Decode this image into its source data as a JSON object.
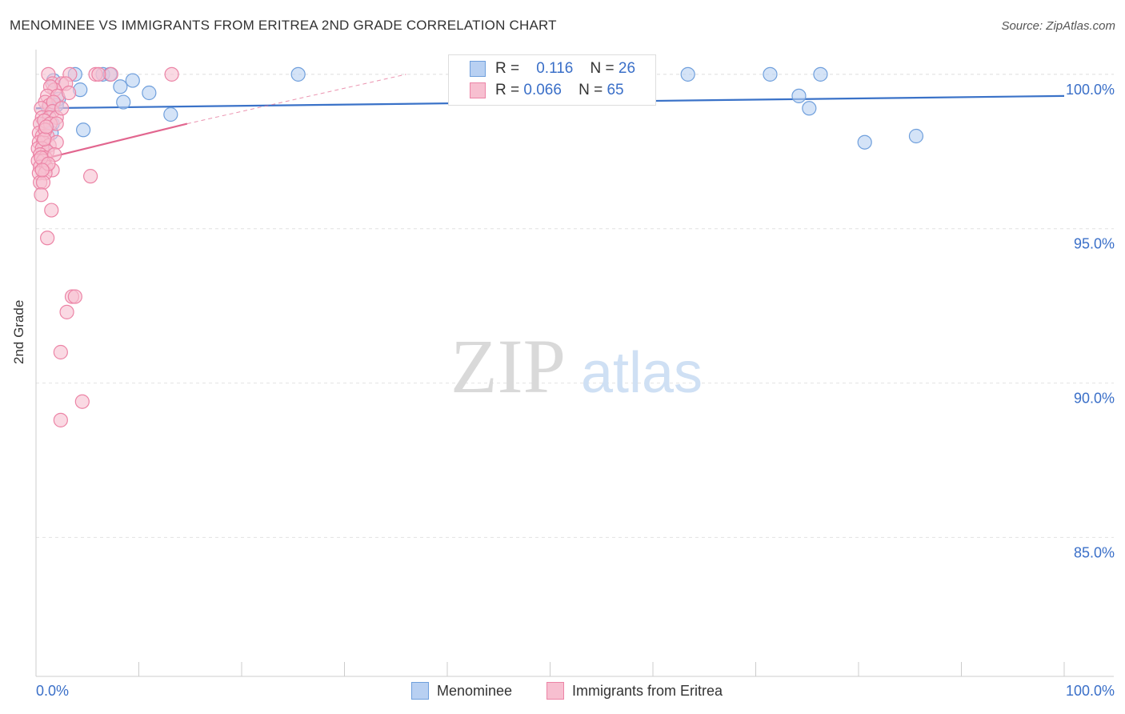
{
  "title": "MENOMINEE VS IMMIGRANTS FROM ERITREA 2ND GRADE CORRELATION CHART",
  "source": "Source: ZipAtlas.com",
  "watermark": {
    "zip": "ZIP",
    "atlas": "atlas"
  },
  "colors": {
    "blue_fill": "#b8d0f2",
    "blue_stroke": "#6f9fdc",
    "blue_line": "#3a72c8",
    "pink_fill": "#f7bfd0",
    "pink_stroke": "#ec84a6",
    "pink_line": "#e2668f",
    "tick_label": "#3a6fc8",
    "grid": "#e2e2e2"
  },
  "legend": {
    "rows": [
      {
        "r_label": "R =",
        "r_value": "0.116",
        "n_label": "N =",
        "n_value": "26"
      },
      {
        "r_label": "R =",
        "r_value": "0.066",
        "n_label": "N =",
        "n_value": "65"
      }
    ]
  },
  "bottom_legend": {
    "items": [
      "Menominee",
      "Immigrants from Eritrea"
    ]
  },
  "chart_data": {
    "type": "scatter",
    "title": "MENOMINEE VS IMMIGRANTS FROM ERITREA 2ND GRADE CORRELATION CHART",
    "xlabel": "",
    "ylabel": "2nd Grade",
    "xlim": [
      0,
      100
    ],
    "ylim": [
      80.5,
      100.8
    ],
    "x_tick_labels": [
      "0.0%",
      "100.0%"
    ],
    "y_ticks": [
      85,
      90,
      95,
      100
    ],
    "y_tick_labels": [
      "85.0%",
      "90.0%",
      "95.0%",
      "100.0%"
    ],
    "grid": true,
    "legend_position": "top-center",
    "series": [
      {
        "name": "Menominee",
        "color": "#6f9fdc",
        "trend": {
          "x": [
            0,
            100
          ],
          "y": [
            98.9,
            99.3
          ]
        },
        "points": [
          [
            3.8,
            100.0
          ],
          [
            6.5,
            100.0
          ],
          [
            7.2,
            100.0
          ],
          [
            25.5,
            100.0
          ],
          [
            63.4,
            100.0
          ],
          [
            71.4,
            100.0
          ],
          [
            76.3,
            100.0
          ],
          [
            9.4,
            99.8
          ],
          [
            1.7,
            99.8
          ],
          [
            8.2,
            99.6
          ],
          [
            4.3,
            99.5
          ],
          [
            11,
            99.4
          ],
          [
            2.2,
            99.2
          ],
          [
            8.5,
            99.1
          ],
          [
            74.2,
            99.3
          ],
          [
            2.0,
            99.0
          ],
          [
            1.2,
            98.9
          ],
          [
            75.2,
            98.9
          ],
          [
            13.1,
            98.7
          ],
          [
            0.9,
            98.4
          ],
          [
            1.6,
            98.4
          ],
          [
            4.6,
            98.2
          ],
          [
            1.5,
            98.1
          ],
          [
            85.6,
            98.0
          ],
          [
            80.6,
            97.8
          ],
          [
            0.8,
            97.6
          ]
        ]
      },
      {
        "name": "Immigrants from Eritrea",
        "color": "#ec84a6",
        "trend": {
          "x": [
            0,
            14.7
          ],
          "y": [
            97.2,
            98.4
          ]
        },
        "trend_dashed": {
          "x": [
            14.7,
            36
          ],
          "y": [
            98.4,
            100.0
          ]
        },
        "points": [
          [
            1.2,
            100.0
          ],
          [
            3.3,
            100.0
          ],
          [
            5.8,
            100.0
          ],
          [
            7.3,
            100.0
          ],
          [
            13.2,
            100.0
          ],
          [
            6.1,
            100.0
          ],
          [
            1.6,
            99.7
          ],
          [
            2.5,
            99.7
          ],
          [
            2.9,
            99.7
          ],
          [
            1.8,
            99.5
          ],
          [
            1.4,
            99.6
          ],
          [
            1.1,
            99.3
          ],
          [
            2.1,
            99.3
          ],
          [
            0.9,
            99.1
          ],
          [
            1.3,
            99.0
          ],
          [
            1.7,
            99.1
          ],
          [
            0.5,
            98.9
          ],
          [
            1.6,
            98.8
          ],
          [
            0.6,
            98.6
          ],
          [
            1.3,
            98.6
          ],
          [
            2.0,
            98.6
          ],
          [
            0.4,
            98.4
          ],
          [
            0.8,
            98.5
          ],
          [
            1.4,
            98.4
          ],
          [
            2.0,
            98.4
          ],
          [
            0.3,
            98.1
          ],
          [
            0.6,
            98.0
          ],
          [
            1.1,
            98.0
          ],
          [
            0.3,
            97.8
          ],
          [
            0.7,
            97.8
          ],
          [
            1.3,
            97.7
          ],
          [
            2.0,
            97.8
          ],
          [
            0.2,
            97.6
          ],
          [
            0.6,
            97.6
          ],
          [
            1.1,
            97.5
          ],
          [
            0.4,
            97.4
          ],
          [
            0.9,
            97.3
          ],
          [
            0.2,
            97.2
          ],
          [
            0.7,
            97.2
          ],
          [
            0.4,
            97.0
          ],
          [
            1.0,
            97.0
          ],
          [
            1.6,
            96.9
          ],
          [
            0.3,
            96.8
          ],
          [
            0.9,
            96.8
          ],
          [
            5.3,
            96.7
          ],
          [
            0.4,
            96.5
          ],
          [
            0.7,
            96.5
          ],
          [
            0.5,
            96.1
          ],
          [
            1.5,
            95.6
          ],
          [
            1.1,
            94.7
          ],
          [
            3.5,
            92.8
          ],
          [
            3.8,
            92.8
          ],
          [
            3.0,
            92.3
          ],
          [
            2.4,
            91.0
          ],
          [
            4.5,
            89.4
          ],
          [
            2.4,
            88.8
          ],
          [
            0.9,
            98.2
          ],
          [
            1.8,
            97.4
          ],
          [
            0.5,
            97.3
          ],
          [
            2.5,
            98.9
          ],
          [
            3.2,
            99.4
          ],
          [
            0.8,
            97.9
          ],
          [
            1.2,
            97.1
          ],
          [
            0.6,
            96.9
          ],
          [
            1.0,
            98.3
          ]
        ]
      }
    ]
  }
}
